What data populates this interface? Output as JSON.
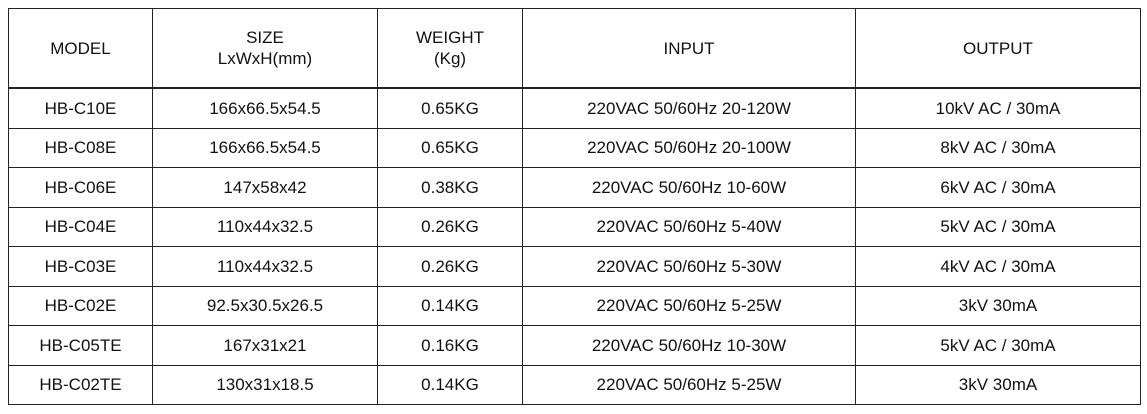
{
  "table": {
    "headers": [
      {
        "line1": "MODEL",
        "line2": ""
      },
      {
        "line1": "SIZE",
        "line2": "LxWxH(mm)"
      },
      {
        "line1": "WEIGHT",
        "line2": "(Kg)"
      },
      {
        "line1": "INPUT",
        "line2": ""
      },
      {
        "line1": "OUTPUT",
        "line2": ""
      }
    ],
    "rows": [
      [
        "HB-C10E",
        "166x66.5x54.5",
        "0.65KG",
        "220VAC 50/60Hz 20-120W",
        "10kV AC / 30mA"
      ],
      [
        "HB-C08E",
        "166x66.5x54.5",
        "0.65KG",
        "220VAC 50/60Hz 20-100W",
        "8kV AC / 30mA"
      ],
      [
        "HB-C06E",
        "147x58x42",
        "0.38KG",
        "220VAC 50/60Hz 10-60W",
        "6kV AC / 30mA"
      ],
      [
        "HB-C04E",
        "110x44x32.5",
        "0.26KG",
        "220VAC 50/60Hz 5-40W",
        "5kV AC / 30mA"
      ],
      [
        "HB-C03E",
        "110x44x32.5",
        "0.26KG",
        "220VAC 50/60Hz 5-30W",
        "4kV AC / 30mA"
      ],
      [
        "HB-C02E",
        "92.5x30.5x26.5",
        "0.14KG",
        "220VAC 50/60Hz 5-25W",
        "3kV 30mA"
      ],
      [
        "HB-C05TE",
        "167x31x21",
        "0.16KG",
        "220VAC 50/60Hz 10-30W",
        "5kV AC / 30mA"
      ],
      [
        "HB-C02TE",
        "130x31x18.5",
        "0.14KG",
        "220VAC 50/60Hz 5-25W",
        "3kV 30mA"
      ]
    ]
  }
}
